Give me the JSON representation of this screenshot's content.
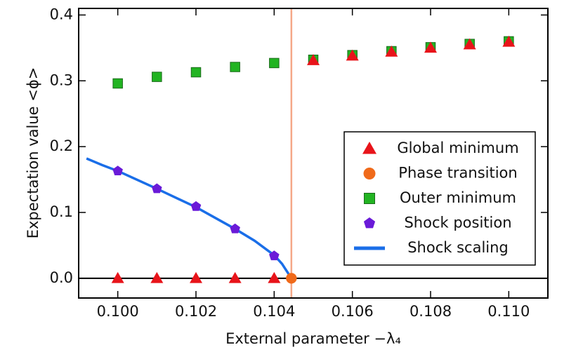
{
  "chart_data": {
    "type": "scatter",
    "xlabel": "External parameter −λ₄",
    "ylabel": "Expectation value  <ϕ>",
    "xlim": [
      0.099,
      0.111
    ],
    "ylim": [
      -0.03,
      0.41
    ],
    "xticks": [
      {
        "value": 0.1,
        "label": "0.100"
      },
      0.102,
      0.104,
      0.106,
      0.108,
      {
        "value": 0.11,
        "label": "0.110"
      }
    ],
    "yticks": [
      {
        "value": 0,
        "label": "0.0"
      },
      0.1,
      0.2,
      0.3,
      0.4
    ],
    "legend": "lower right",
    "series": [
      {
        "name": "Global minimum",
        "marker": "triangle",
        "color": "#e8141a",
        "x": [
          0.1,
          0.101,
          0.102,
          0.103,
          0.104,
          0.105,
          0.106,
          0.107,
          0.108,
          0.109,
          0.11
        ],
        "values": [
          0,
          0,
          0,
          0,
          0,
          0.331,
          0.338,
          0.344,
          0.35,
          0.355,
          0.359
        ]
      },
      {
        "name": "Phase transition",
        "marker": "circle",
        "color": "#f06a1a",
        "x": [
          0.10444
        ],
        "values": [
          0
        ]
      },
      {
        "name": "Outer minimum",
        "marker": "square",
        "color": "#22b422",
        "x": [
          0.1,
          0.101,
          0.102,
          0.103,
          0.104,
          0.105,
          0.106,
          0.107,
          0.108,
          0.109,
          0.11
        ],
        "values": [
          0.296,
          0.306,
          0.313,
          0.321,
          0.327,
          0.332,
          0.339,
          0.345,
          0.351,
          0.356,
          0.36
        ]
      },
      {
        "name": "Shock position",
        "marker": "pentagon",
        "color": "#6a1ad8",
        "x": [
          0.1,
          0.101,
          0.102,
          0.103,
          0.104
        ],
        "values": [
          0.163,
          0.136,
          0.109,
          0.075,
          0.034
        ]
      },
      {
        "name": "Shock scaling",
        "marker": "line",
        "color": "#1a6ee8",
        "x": [
          0.0992,
          0.0996,
          0.1,
          0.101,
          0.102,
          0.103,
          0.1035,
          0.104,
          0.1042,
          0.10444
        ],
        "values": [
          0.182,
          0.172,
          0.163,
          0.136,
          0.108,
          0.075,
          0.057,
          0.035,
          0.022,
          0
        ]
      }
    ],
    "vline_color": "#f5a888"
  }
}
